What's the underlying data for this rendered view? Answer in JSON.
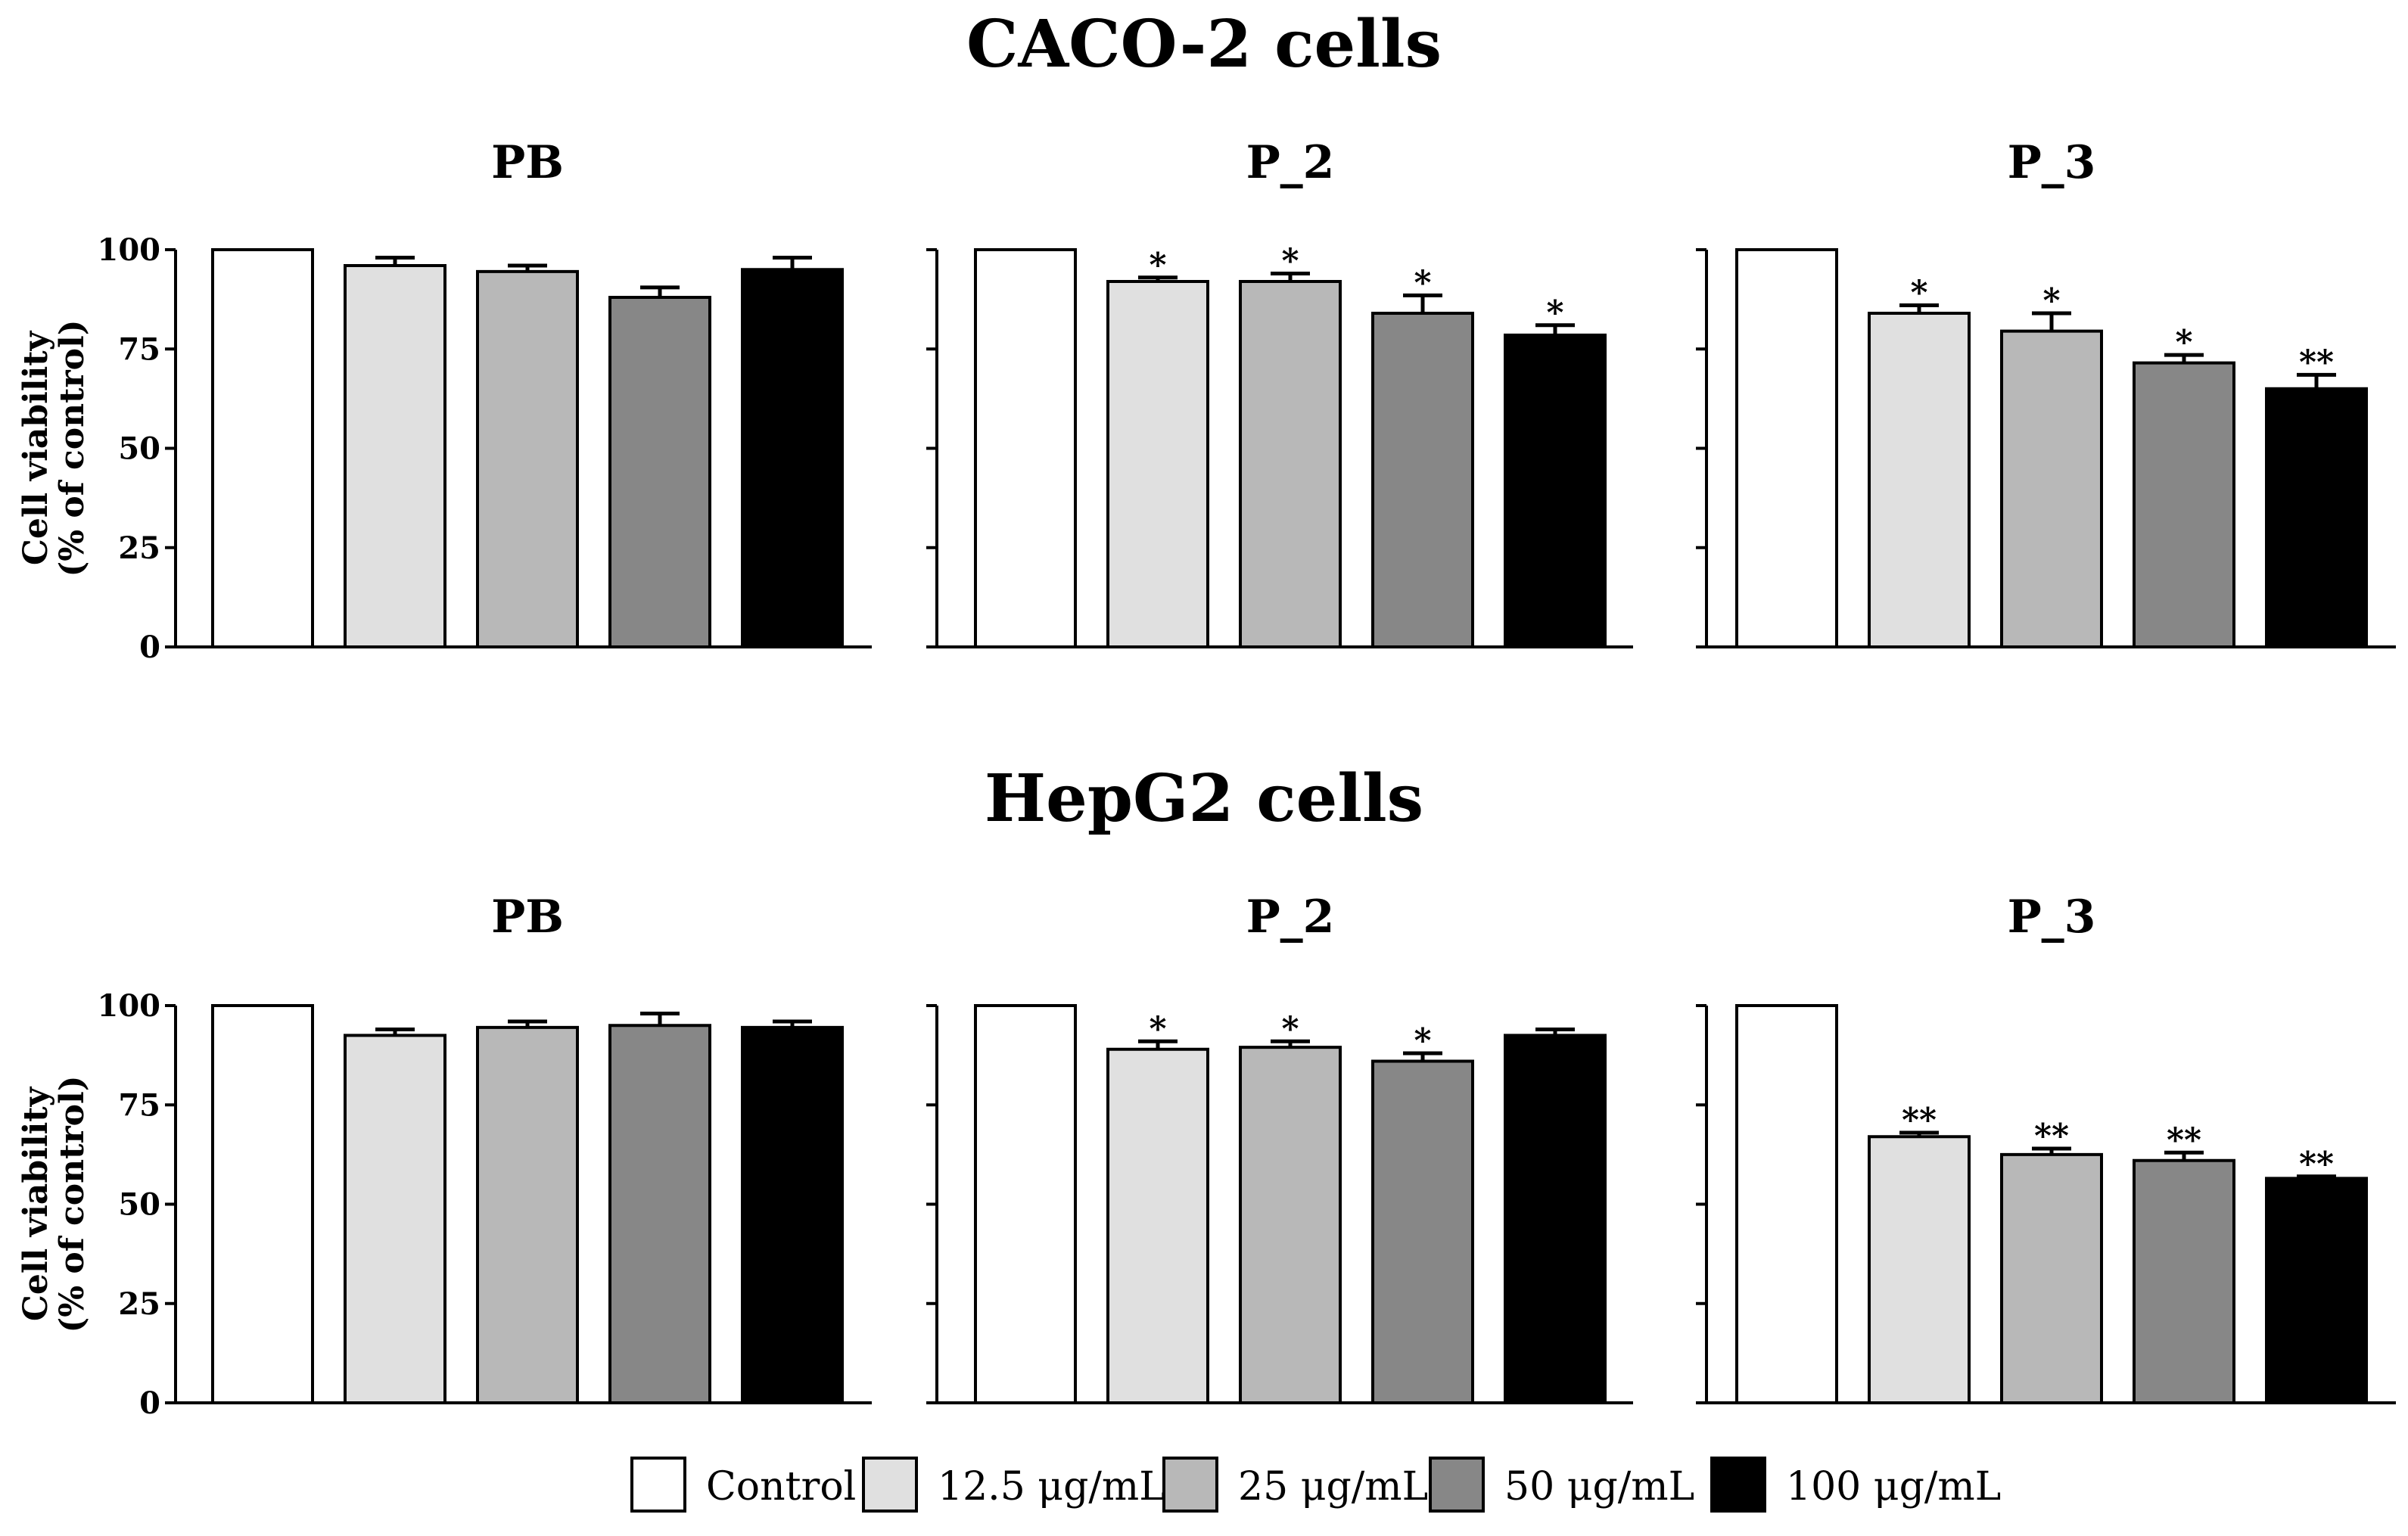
{
  "chart_data": {
    "type": "bar",
    "y_label_line1": "Cell viability",
    "y_label_line2": "(% of control)",
    "ylim": [
      0,
      100
    ],
    "yticks": [
      "0",
      "25",
      "50",
      "75",
      "100"
    ],
    "categories": [
      "Control",
      "12.5 μg/mL",
      "25 μg/mL",
      "50 μg/mL",
      "100 μg/mL"
    ],
    "colors": [
      "#ffffff",
      "#e0e0e0",
      "#b8b8b8",
      "#878787",
      "#000000"
    ],
    "legend": [
      {
        "label": "Control",
        "color": "#ffffff"
      },
      {
        "label": "12.5 μg/mL",
        "color": "#e0e0e0"
      },
      {
        "label": "25 μg/mL",
        "color": "#b8b8b8"
      },
      {
        "label": "50 μg/mL",
        "color": "#878787"
      },
      {
        "label": "100 μg/mL",
        "color": "#000000"
      }
    ],
    "rows": [
      {
        "title": "CACO-2 cells",
        "panels": [
          {
            "title": "PB",
            "values": [
              100,
              96,
              94.5,
              88,
              95
            ],
            "errors": [
              0,
              2,
              1.5,
              2.5,
              3
            ],
            "sig": [
              "",
              "",
              "",
              "",
              ""
            ]
          },
          {
            "title": "P_2",
            "values": [
              100,
              92,
              92,
              84,
              78.5
            ],
            "errors": [
              0,
              1,
              2,
              4.5,
              2.5
            ],
            "sig": [
              "",
              "*",
              "*",
              "*",
              "*"
            ]
          },
          {
            "title": "P_3",
            "values": [
              100,
              84,
              79.5,
              71.5,
              65
            ],
            "errors": [
              0,
              2,
              4.5,
              2,
              3.5
            ],
            "sig": [
              "",
              "*",
              "*",
              "*",
              "**"
            ]
          }
        ]
      },
      {
        "title": "HepG2 cells",
        "panels": [
          {
            "title": "PB",
            "values": [
              100,
              92.5,
              94.5,
              95,
              94.5
            ],
            "errors": [
              0,
              1.5,
              1.5,
              3,
              1.5
            ],
            "sig": [
              "",
              "",
              "",
              "",
              ""
            ]
          },
          {
            "title": "P_2",
            "values": [
              100,
              89,
              89.5,
              86,
              92.5
            ],
            "errors": [
              0,
              2,
              1.5,
              2,
              1.5
            ],
            "sig": [
              "",
              "*",
              "*",
              "*",
              ""
            ]
          },
          {
            "title": "P_3",
            "values": [
              100,
              67,
              62.5,
              61,
              56.5
            ],
            "errors": [
              0,
              1,
              1.5,
              2,
              0.5
            ],
            "sig": [
              "",
              "**",
              "**",
              "**",
              "**"
            ]
          }
        ]
      }
    ]
  }
}
